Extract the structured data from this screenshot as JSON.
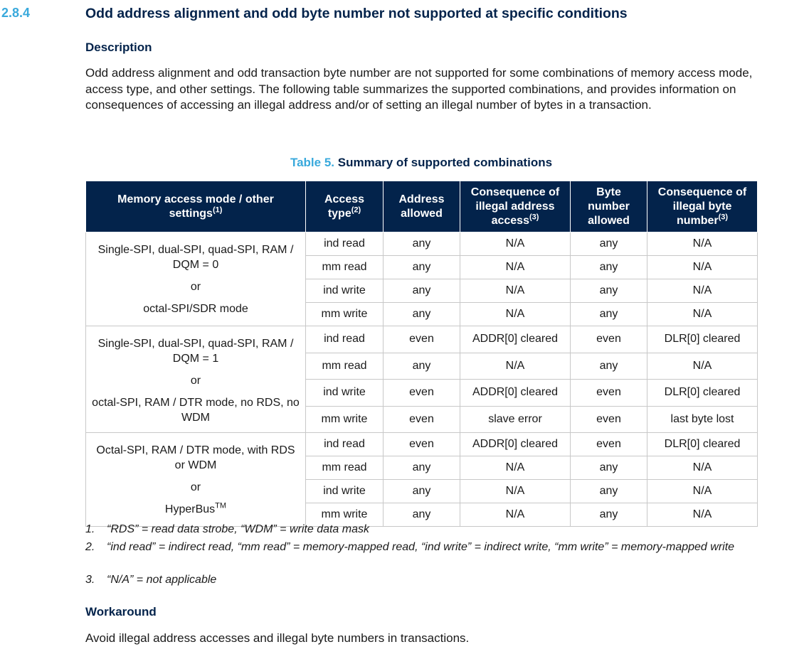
{
  "section": {
    "number": "2.8.4",
    "title": "Odd address alignment and odd byte number not supported at specific conditions"
  },
  "description": {
    "heading": "Description",
    "text": "Odd address alignment and odd transaction byte number are not supported for some combinations of memory access mode, access type, and other settings. The following table summarizes the supported combinations, and provides information on consequences of accessing an illegal address and/or of setting an illegal number of bytes in a transaction."
  },
  "table": {
    "label": "Table 5.",
    "caption": "Summary of supported combinations",
    "headers": [
      {
        "text": "Memory access mode / other settings",
        "note": "(1)"
      },
      {
        "text": "Access type",
        "note": "(2)"
      },
      {
        "text": "Address allowed"
      },
      {
        "text": "Consequence of illegal address access",
        "note": "(3)"
      },
      {
        "text": "Byte number allowed"
      },
      {
        "text": "Consequence of illegal byte number",
        "note": "(3)"
      }
    ],
    "groups": [
      {
        "mode": [
          "Single-SPI, dual-SPI, quad-SPI, RAM / DQM = 0",
          "or",
          "octal-SPI/SDR mode"
        ],
        "rows": [
          [
            "ind read",
            "any",
            "N/A",
            "any",
            "N/A"
          ],
          [
            "mm read",
            "any",
            "N/A",
            "any",
            "N/A"
          ],
          [
            "ind write",
            "any",
            "N/A",
            "any",
            "N/A"
          ],
          [
            "mm write",
            "any",
            "N/A",
            "any",
            "N/A"
          ]
        ]
      },
      {
        "mode": [
          "Single-SPI, dual-SPI, quad-SPI, RAM / DQM = 1",
          "or",
          "octal-SPI, RAM / DTR mode, no RDS, no WDM"
        ],
        "rows": [
          [
            "ind read",
            "even",
            "ADDR[0] cleared",
            "even",
            "DLR[0] cleared"
          ],
          [
            "mm read",
            "any",
            "N/A",
            "any",
            "N/A"
          ],
          [
            "ind write",
            "even",
            "ADDR[0] cleared",
            "even",
            "DLR[0] cleared"
          ],
          [
            "mm write",
            "even",
            "slave error",
            "even",
            "last byte lost"
          ]
        ]
      },
      {
        "mode": [
          "Octal-SPI, RAM / DTR mode, with RDS or WDM",
          "or",
          "HyperBus"
        ],
        "trademark": "TM",
        "rows": [
          [
            "ind read",
            "even",
            "ADDR[0] cleared",
            "even",
            "DLR[0] cleared"
          ],
          [
            "mm read",
            "any",
            "N/A",
            "any",
            "N/A"
          ],
          [
            "ind write",
            "any",
            "N/A",
            "any",
            "N/A"
          ],
          [
            "mm write",
            "any",
            "N/A",
            "any",
            "N/A"
          ]
        ]
      }
    ]
  },
  "footnotes": [
    {
      "number": "1.",
      "text": "“RDS” = read data strobe, “WDM” = write data mask"
    },
    {
      "number": "2.",
      "text": "“ind read” = indirect read, “mm read” = memory-mapped read, “ind write” = indirect write, “mm write” = memory-mapped write"
    },
    {
      "number": "3.",
      "text": "“N/A” = not applicable"
    }
  ],
  "workaround": {
    "heading": "Workaround",
    "text": "Avoid illegal address accesses and illegal byte numbers in transactions."
  }
}
